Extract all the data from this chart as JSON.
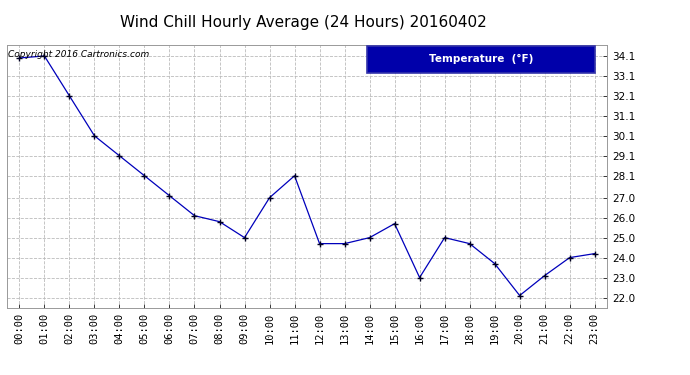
{
  "title": "Wind Chill Hourly Average (24 Hours) 20160402",
  "copyright_text": "Copyright 2016 Cartronics.com",
  "legend_label": "Temperature  (°F)",
  "hours": [
    0,
    1,
    2,
    3,
    4,
    5,
    6,
    7,
    8,
    9,
    10,
    11,
    12,
    13,
    14,
    15,
    16,
    17,
    18,
    19,
    20,
    21,
    22,
    23
  ],
  "x_labels": [
    "00:00",
    "01:00",
    "02:00",
    "03:00",
    "04:00",
    "05:00",
    "06:00",
    "07:00",
    "08:00",
    "09:00",
    "10:00",
    "11:00",
    "12:00",
    "13:00",
    "14:00",
    "15:00",
    "16:00",
    "17:00",
    "18:00",
    "19:00",
    "20:00",
    "21:00",
    "22:00",
    "23:00"
  ],
  "values": [
    34.0,
    34.1,
    32.1,
    30.1,
    29.1,
    28.1,
    27.1,
    26.1,
    25.8,
    25.0,
    27.0,
    28.1,
    24.7,
    24.7,
    25.0,
    25.7,
    23.0,
    25.0,
    24.7,
    23.7,
    22.1,
    23.1,
    24.0,
    24.2
  ],
  "y_ticks": [
    22.0,
    23.0,
    24.0,
    25.0,
    26.0,
    27.0,
    28.1,
    29.1,
    30.1,
    31.1,
    32.1,
    33.1,
    34.1
  ],
  "y_tick_labels": [
    "22.0",
    "23.0",
    "24.0",
    "25.0",
    "26.0",
    "27.0",
    "28.1",
    "29.1",
    "30.1",
    "31.1",
    "32.1",
    "33.1",
    "34.1"
  ],
  "ylim": [
    21.5,
    34.65
  ],
  "xlim": [
    -0.5,
    23.5
  ],
  "line_color": "#0000bb",
  "marker": "+",
  "background_color": "#ffffff",
  "grid_color": "#bbbbbb",
  "title_fontsize": 11,
  "tick_fontsize": 7.5,
  "legend_bg_color": "#0000aa",
  "legend_text_color": "#ffffff",
  "copyright_fontsize": 6.5
}
